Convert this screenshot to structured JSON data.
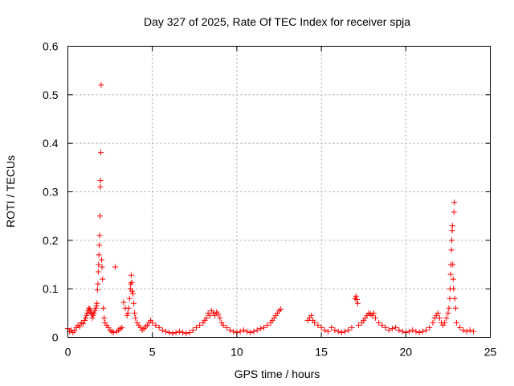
{
  "chart_data": {
    "type": "scatter",
    "title": "Day 327 of 2025, Rate Of TEC Index for receiver spja",
    "xlabel": "GPS time / hours",
    "ylabel": "ROTI / TECUs",
    "xlim": [
      0,
      25
    ],
    "ylim": [
      0,
      0.6
    ],
    "xticks": [
      0,
      5,
      10,
      15,
      20,
      25
    ],
    "xtick_labels": [
      "0",
      "5",
      "10",
      "15",
      "20",
      "25"
    ],
    "yticks": [
      0,
      0.1,
      0.2,
      0.3,
      0.4,
      0.5,
      0.6
    ],
    "ytick_labels": [
      "0",
      "0.1",
      "0.2",
      "0.3",
      "0.4",
      "0.5",
      "0.6"
    ],
    "grid": true,
    "marker": "+",
    "marker_color": "#ff0000",
    "series": [
      {
        "points": [
          [
            0.0,
            0.018
          ],
          [
            0.1,
            0.012
          ],
          [
            0.2,
            0.015
          ],
          [
            0.3,
            0.01
          ],
          [
            0.4,
            0.014
          ],
          [
            0.5,
            0.02
          ],
          [
            0.6,
            0.025
          ],
          [
            0.7,
            0.022
          ],
          [
            0.8,
            0.03
          ],
          [
            0.9,
            0.028
          ],
          [
            1.0,
            0.035
          ],
          [
            1.05,
            0.04
          ],
          [
            1.1,
            0.045
          ],
          [
            1.15,
            0.05
          ],
          [
            1.2,
            0.055
          ],
          [
            1.25,
            0.06
          ],
          [
            1.3,
            0.058
          ],
          [
            1.35,
            0.052
          ],
          [
            1.4,
            0.048
          ],
          [
            1.45,
            0.04
          ],
          [
            1.5,
            0.045
          ],
          [
            1.55,
            0.05
          ],
          [
            1.6,
            0.055
          ],
          [
            1.65,
            0.06
          ],
          [
            1.7,
            0.065
          ],
          [
            1.72,
            0.07
          ],
          [
            1.75,
            0.098
          ],
          [
            1.78,
            0.11
          ],
          [
            1.8,
            0.135
          ],
          [
            1.82,
            0.15
          ],
          [
            1.84,
            0.17
          ],
          [
            1.86,
            0.19
          ],
          [
            1.88,
            0.21
          ],
          [
            1.9,
            0.25
          ],
          [
            1.92,
            0.31
          ],
          [
            1.93,
            0.323
          ],
          [
            1.95,
            0.381
          ],
          [
            1.97,
            0.52
          ],
          [
            2.0,
            0.16
          ],
          [
            2.02,
            0.145
          ],
          [
            2.05,
            0.12
          ],
          [
            2.1,
            0.06
          ],
          [
            2.15,
            0.04
          ],
          [
            2.2,
            0.03
          ],
          [
            2.3,
            0.025
          ],
          [
            2.4,
            0.02
          ],
          [
            2.5,
            0.015
          ],
          [
            2.6,
            0.012
          ],
          [
            2.7,
            0.01
          ],
          [
            2.8,
            0.145
          ],
          [
            2.9,
            0.012
          ],
          [
            3.0,
            0.015
          ],
          [
            3.1,
            0.018
          ],
          [
            3.2,
            0.02
          ],
          [
            3.3,
            0.072
          ],
          [
            3.4,
            0.06
          ],
          [
            3.5,
            0.045
          ],
          [
            3.55,
            0.05
          ],
          [
            3.6,
            0.06
          ],
          [
            3.65,
            0.08
          ],
          [
            3.7,
            0.1
          ],
          [
            3.72,
            0.11
          ],
          [
            3.75,
            0.128
          ],
          [
            3.78,
            0.113
          ],
          [
            3.8,
            0.095
          ],
          [
            3.85,
            0.09
          ],
          [
            3.9,
            0.07
          ],
          [
            3.95,
            0.05
          ],
          [
            4.0,
            0.04
          ],
          [
            4.1,
            0.03
          ],
          [
            4.2,
            0.025
          ],
          [
            4.3,
            0.02
          ],
          [
            4.4,
            0.015
          ],
          [
            4.5,
            0.018
          ],
          [
            4.6,
            0.022
          ],
          [
            4.7,
            0.025
          ],
          [
            4.8,
            0.03
          ],
          [
            4.9,
            0.035
          ],
          [
            5.0,
            0.03
          ],
          [
            5.2,
            0.025
          ],
          [
            5.4,
            0.02
          ],
          [
            5.6,
            0.015
          ],
          [
            5.8,
            0.012
          ],
          [
            6.0,
            0.01
          ],
          [
            6.2,
            0.008
          ],
          [
            6.4,
            0.01
          ],
          [
            6.6,
            0.012
          ],
          [
            6.8,
            0.01
          ],
          [
            7.0,
            0.008
          ],
          [
            7.2,
            0.01
          ],
          [
            7.4,
            0.015
          ],
          [
            7.6,
            0.02
          ],
          [
            7.8,
            0.025
          ],
          [
            8.0,
            0.03
          ],
          [
            8.1,
            0.035
          ],
          [
            8.2,
            0.04
          ],
          [
            8.3,
            0.05
          ],
          [
            8.4,
            0.045
          ],
          [
            8.5,
            0.055
          ],
          [
            8.6,
            0.05
          ],
          [
            8.7,
            0.045
          ],
          [
            8.8,
            0.052
          ],
          [
            8.9,
            0.048
          ],
          [
            9.0,
            0.04
          ],
          [
            9.1,
            0.03
          ],
          [
            9.2,
            0.025
          ],
          [
            9.4,
            0.02
          ],
          [
            9.6,
            0.015
          ],
          [
            9.8,
            0.012
          ],
          [
            10.0,
            0.01
          ],
          [
            10.2,
            0.012
          ],
          [
            10.4,
            0.015
          ],
          [
            10.6,
            0.012
          ],
          [
            10.8,
            0.01
          ],
          [
            11.0,
            0.012
          ],
          [
            11.2,
            0.015
          ],
          [
            11.4,
            0.018
          ],
          [
            11.6,
            0.02
          ],
          [
            11.8,
            0.025
          ],
          [
            12.0,
            0.03
          ],
          [
            12.1,
            0.035
          ],
          [
            12.2,
            0.04
          ],
          [
            12.3,
            0.045
          ],
          [
            12.4,
            0.05
          ],
          [
            12.5,
            0.055
          ],
          [
            12.6,
            0.058
          ],
          [
            14.2,
            0.035
          ],
          [
            14.3,
            0.04
          ],
          [
            14.4,
            0.045
          ],
          [
            14.5,
            0.035
          ],
          [
            14.6,
            0.03
          ],
          [
            14.8,
            0.025
          ],
          [
            15.0,
            0.02
          ],
          [
            15.2,
            0.015
          ],
          [
            15.4,
            0.012
          ],
          [
            15.6,
            0.02
          ],
          [
            15.8,
            0.015
          ],
          [
            16.0,
            0.012
          ],
          [
            16.2,
            0.01
          ],
          [
            16.4,
            0.012
          ],
          [
            16.6,
            0.015
          ],
          [
            16.8,
            0.02
          ],
          [
            17.0,
            0.08
          ],
          [
            17.05,
            0.085
          ],
          [
            17.1,
            0.078
          ],
          [
            17.15,
            0.07
          ],
          [
            17.2,
            0.025
          ],
          [
            17.4,
            0.03
          ],
          [
            17.5,
            0.035
          ],
          [
            17.6,
            0.04
          ],
          [
            17.7,
            0.045
          ],
          [
            17.8,
            0.05
          ],
          [
            17.9,
            0.048
          ],
          [
            18.0,
            0.045
          ],
          [
            18.1,
            0.05
          ],
          [
            18.2,
            0.04
          ],
          [
            18.4,
            0.03
          ],
          [
            18.6,
            0.025
          ],
          [
            18.8,
            0.02
          ],
          [
            19.0,
            0.015
          ],
          [
            19.2,
            0.018
          ],
          [
            19.4,
            0.02
          ],
          [
            19.6,
            0.015
          ],
          [
            19.8,
            0.012
          ],
          [
            20.0,
            0.01
          ],
          [
            20.2,
            0.012
          ],
          [
            20.4,
            0.015
          ],
          [
            20.6,
            0.012
          ],
          [
            20.8,
            0.01
          ],
          [
            21.0,
            0.012
          ],
          [
            21.2,
            0.015
          ],
          [
            21.4,
            0.02
          ],
          [
            21.6,
            0.03
          ],
          [
            21.7,
            0.04
          ],
          [
            21.8,
            0.045
          ],
          [
            21.9,
            0.05
          ],
          [
            22.0,
            0.04
          ],
          [
            22.1,
            0.03
          ],
          [
            22.2,
            0.025
          ],
          [
            22.3,
            0.03
          ],
          [
            22.4,
            0.04
          ],
          [
            22.5,
            0.05
          ],
          [
            22.55,
            0.06
          ],
          [
            22.6,
            0.08
          ],
          [
            22.62,
            0.1
          ],
          [
            22.65,
            0.13
          ],
          [
            22.67,
            0.15
          ],
          [
            22.7,
            0.18
          ],
          [
            22.72,
            0.2
          ],
          [
            22.74,
            0.22
          ],
          [
            22.76,
            0.23
          ],
          [
            22.78,
            0.15
          ],
          [
            22.8,
            0.12
          ],
          [
            22.82,
            0.1
          ],
          [
            22.85,
            0.258
          ],
          [
            22.87,
            0.278
          ],
          [
            22.9,
            0.08
          ],
          [
            22.95,
            0.06
          ],
          [
            23.0,
            0.03
          ],
          [
            23.2,
            0.02
          ],
          [
            23.4,
            0.015
          ],
          [
            23.6,
            0.012
          ],
          [
            23.8,
            0.015
          ],
          [
            24.0,
            0.012
          ]
        ]
      }
    ]
  }
}
